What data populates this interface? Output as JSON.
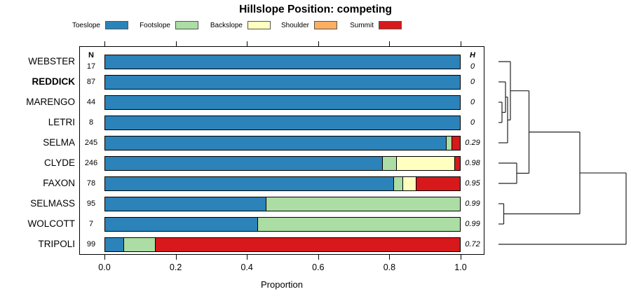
{
  "title": "Hillslope Position: competing",
  "xlabel": "Proportion",
  "columns": {
    "n_header": "N",
    "h_header": "H"
  },
  "legend": [
    {
      "label": "Toeslope",
      "color": "#2B83BA"
    },
    {
      "label": "Footslope",
      "color": "#ABDDA4"
    },
    {
      "label": "Backslope",
      "color": "#FFFFBF"
    },
    {
      "label": "Shoulder",
      "color": "#FDAE61"
    },
    {
      "label": "Summit",
      "color": "#D7191C"
    }
  ],
  "chart_data": {
    "type": "bar",
    "variant": "horizontal-stacked-proportion",
    "title": "Hillslope Position: competing",
    "xlabel": "Proportion",
    "xlim": [
      0,
      1
    ],
    "xticks": [
      "0.0",
      "0.2",
      "0.4",
      "0.6",
      "0.8",
      "1.0"
    ],
    "grid": false,
    "legend_position": "top",
    "categories": [
      "Toeslope",
      "Footslope",
      "Backslope",
      "Shoulder",
      "Summit"
    ],
    "rows": [
      {
        "name": "WEBSTER",
        "bold": false,
        "n": 17,
        "h": "0",
        "segments": [
          [
            "Toeslope",
            1.0
          ]
        ]
      },
      {
        "name": "REDDICK",
        "bold": true,
        "n": 87,
        "h": "0",
        "segments": [
          [
            "Toeslope",
            1.0
          ]
        ]
      },
      {
        "name": "MARENGO",
        "bold": false,
        "n": 44,
        "h": "0",
        "segments": [
          [
            "Toeslope",
            1.0
          ]
        ]
      },
      {
        "name": "LETRI",
        "bold": false,
        "n": 8,
        "h": "0",
        "segments": [
          [
            "Toeslope",
            1.0
          ]
        ]
      },
      {
        "name": "SELMA",
        "bold": false,
        "n": 245,
        "h": "0.29",
        "segments": [
          [
            "Toeslope",
            0.96
          ],
          [
            "Footslope",
            0.016
          ],
          [
            "Summit",
            0.024
          ]
        ]
      },
      {
        "name": "CLYDE",
        "bold": false,
        "n": 246,
        "h": "0.98",
        "segments": [
          [
            "Toeslope",
            0.781
          ],
          [
            "Footslope",
            0.04
          ],
          [
            "Backslope",
            0.163
          ],
          [
            "Summit",
            0.016
          ]
        ]
      },
      {
        "name": "FAXON",
        "bold": false,
        "n": 78,
        "h": "0.95",
        "segments": [
          [
            "Toeslope",
            0.812
          ],
          [
            "Footslope",
            0.026
          ],
          [
            "Backslope",
            0.038
          ],
          [
            "Summit",
            0.124
          ]
        ]
      },
      {
        "name": "SELMASS",
        "bold": false,
        "n": 95,
        "h": "0.99",
        "segments": [
          [
            "Toeslope",
            0.453
          ],
          [
            "Footslope",
            0.547
          ]
        ]
      },
      {
        "name": "WOLCOTT",
        "bold": false,
        "n": 7,
        "h": "0.99",
        "segments": [
          [
            "Toeslope",
            0.429
          ],
          [
            "Footslope",
            0.571
          ]
        ]
      },
      {
        "name": "TRIPOLI",
        "bold": false,
        "n": 99,
        "h": "0.72",
        "segments": [
          [
            "Toeslope",
            0.051
          ],
          [
            "Footslope",
            0.09
          ],
          [
            "Summit",
            0.859
          ]
        ]
      }
    ]
  },
  "dendrogram": {
    "line_color": "#222222",
    "segments": [
      [
        711,
        88,
        728,
        88
      ],
      [
        711,
        117,
        721,
        117
      ],
      [
        711,
        146,
        716,
        146
      ],
      [
        711,
        175,
        716,
        175
      ],
      [
        711,
        204,
        724,
        204
      ],
      [
        711,
        233,
        737,
        233
      ],
      [
        711,
        262,
        737,
        262
      ],
      [
        711,
        291,
        718.5,
        291
      ],
      [
        711,
        320,
        718.5,
        320
      ],
      [
        711,
        349,
        893,
        349
      ],
      [
        716,
        146,
        716,
        175
      ],
      [
        716,
        160.5,
        721,
        160.5
      ],
      [
        721,
        117,
        721,
        160.5
      ],
      [
        721,
        138.75,
        724,
        138.75
      ],
      [
        724,
        138.75,
        724,
        204
      ],
      [
        724,
        171.4,
        728,
        171.4
      ],
      [
        728,
        88,
        728,
        171.4
      ],
      [
        728,
        129.7,
        754.5,
        129.7
      ],
      [
        737,
        233,
        737,
        262
      ],
      [
        737,
        247.5,
        754.5,
        247.5
      ],
      [
        754.5,
        129.7,
        754.5,
        247.5
      ],
      [
        754.5,
        188.6,
        827,
        188.6
      ],
      [
        718.5,
        291,
        718.5,
        320
      ],
      [
        718.5,
        305.5,
        827,
        305.5
      ],
      [
        827,
        188.6,
        827,
        305.5
      ],
      [
        827,
        247.05,
        893,
        247.05
      ],
      [
        893,
        247.05,
        893,
        349
      ]
    ]
  }
}
